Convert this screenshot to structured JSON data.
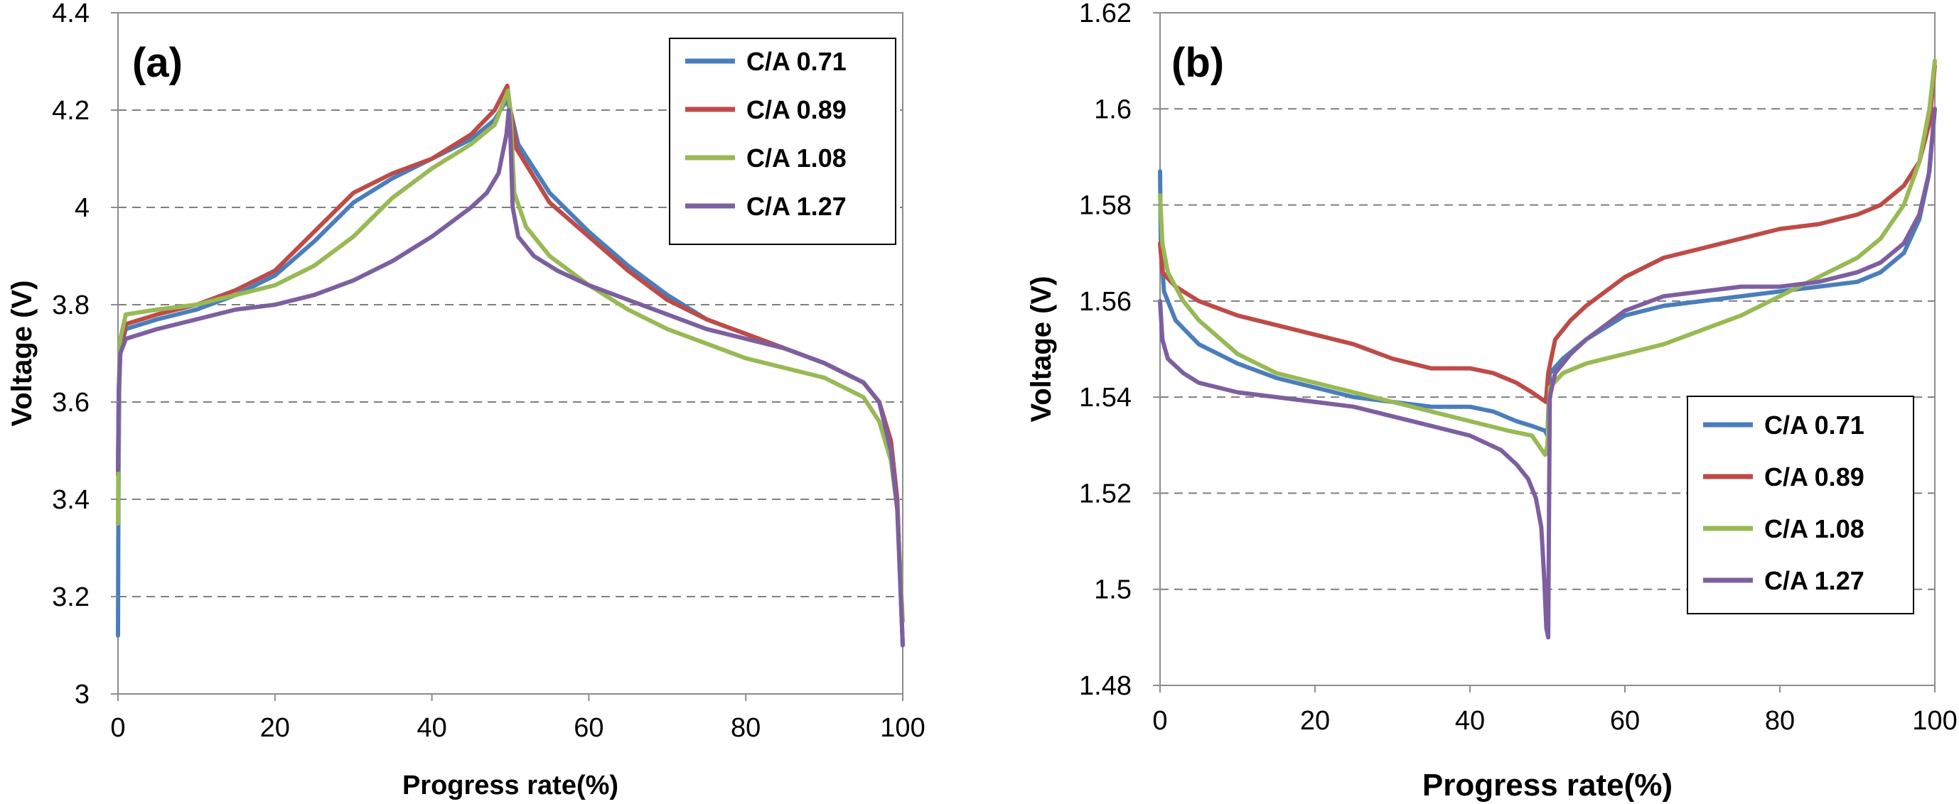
{
  "chart_data": [
    {
      "type": "line",
      "panel_label": "(a)",
      "xlabel": "Progress rate(%)",
      "ylabel": "Voltage  (V)",
      "xlim": [
        0,
        100
      ],
      "ylim": [
        3.0,
        4.4
      ],
      "x_ticks": [
        "0",
        "20",
        "40",
        "60",
        "80",
        "100"
      ],
      "y_ticks": [
        "3",
        "3.2",
        "3.4",
        "3.6",
        "3.8",
        "4",
        "4.2",
        "4.4"
      ],
      "grid": "horizontal-dashed",
      "legend_position": "top-right",
      "series": [
        {
          "name": "C/A 0.71",
          "color": "#4a7ebb",
          "points": [
            [
              0,
              3.12
            ],
            [
              0.05,
              3.4
            ],
            [
              0.15,
              3.62
            ],
            [
              0.3,
              3.71
            ],
            [
              1,
              3.75
            ],
            [
              5,
              3.77
            ],
            [
              10,
              3.79
            ],
            [
              15,
              3.82
            ],
            [
              20,
              3.86
            ],
            [
              25,
              3.93
            ],
            [
              30,
              4.01
            ],
            [
              35,
              4.06
            ],
            [
              40,
              4.1
            ],
            [
              45,
              4.14
            ],
            [
              48,
              4.18
            ],
            [
              49.5,
              4.22
            ],
            [
              50,
              4.2
            ],
            [
              51,
              4.13
            ],
            [
              55,
              4.03
            ],
            [
              60,
              3.95
            ],
            [
              65,
              3.88
            ],
            [
              70,
              3.82
            ],
            [
              75,
              3.77
            ],
            [
              80,
              3.74
            ],
            [
              85,
              3.71
            ],
            [
              90,
              3.68
            ],
            [
              95,
              3.64
            ],
            [
              97,
              3.6
            ],
            [
              98.5,
              3.52
            ],
            [
              99.3,
              3.4
            ],
            [
              100,
              3.1
            ]
          ]
        },
        {
          "name": "C/A 0.89",
          "color": "#be4b48",
          "points": [
            [
              0,
              3.45
            ],
            [
              0.1,
              3.62
            ],
            [
              0.3,
              3.71
            ],
            [
              1,
              3.76
            ],
            [
              5,
              3.78
            ],
            [
              10,
              3.8
            ],
            [
              15,
              3.83
            ],
            [
              20,
              3.87
            ],
            [
              25,
              3.95
            ],
            [
              30,
              4.03
            ],
            [
              35,
              4.07
            ],
            [
              40,
              4.1
            ],
            [
              45,
              4.15
            ],
            [
              48,
              4.2
            ],
            [
              49.6,
              4.25
            ],
            [
              50,
              4.2
            ],
            [
              50.8,
              4.12
            ],
            [
              55,
              4.01
            ],
            [
              60,
              3.94
            ],
            [
              65,
              3.87
            ],
            [
              70,
              3.81
            ],
            [
              75,
              3.77
            ],
            [
              80,
              3.74
            ],
            [
              85,
              3.71
            ],
            [
              90,
              3.68
            ],
            [
              95,
              3.64
            ],
            [
              97,
              3.6
            ],
            [
              98.5,
              3.52
            ],
            [
              99.3,
              3.4
            ],
            [
              100,
              3.1
            ]
          ]
        },
        {
          "name": "C/A 1.08",
          "color": "#98b954",
          "points": [
            [
              0,
              3.35
            ],
            [
              0.1,
              3.6
            ],
            [
              0.3,
              3.73
            ],
            [
              1,
              3.78
            ],
            [
              5,
              3.79
            ],
            [
              10,
              3.8
            ],
            [
              15,
              3.82
            ],
            [
              20,
              3.84
            ],
            [
              25,
              3.88
            ],
            [
              30,
              3.94
            ],
            [
              35,
              4.02
            ],
            [
              40,
              4.08
            ],
            [
              45,
              4.13
            ],
            [
              48,
              4.17
            ],
            [
              49.7,
              4.24
            ],
            [
              50,
              4.2
            ],
            [
              50.5,
              4.03
            ],
            [
              52,
              3.96
            ],
            [
              55,
              3.9
            ],
            [
              60,
              3.84
            ],
            [
              65,
              3.79
            ],
            [
              70,
              3.75
            ],
            [
              75,
              3.72
            ],
            [
              80,
              3.69
            ],
            [
              85,
              3.67
            ],
            [
              90,
              3.65
            ],
            [
              95,
              3.61
            ],
            [
              97,
              3.56
            ],
            [
              98.5,
              3.48
            ],
            [
              99.3,
              3.38
            ],
            [
              100,
              3.15
            ]
          ]
        },
        {
          "name": "C/A 1.27",
          "color": "#7d5fa0",
          "points": [
            [
              0,
              3.46
            ],
            [
              0.1,
              3.63
            ],
            [
              0.3,
              3.7
            ],
            [
              1,
              3.73
            ],
            [
              5,
              3.75
            ],
            [
              10,
              3.77
            ],
            [
              15,
              3.79
            ],
            [
              20,
              3.8
            ],
            [
              25,
              3.82
            ],
            [
              30,
              3.85
            ],
            [
              35,
              3.89
            ],
            [
              40,
              3.94
            ],
            [
              45,
              4.0
            ],
            [
              47,
              4.03
            ],
            [
              48.5,
              4.07
            ],
            [
              49.5,
              4.15
            ],
            [
              49.8,
              4.2
            ],
            [
              50,
              4.15
            ],
            [
              50.3,
              4.0
            ],
            [
              51,
              3.94
            ],
            [
              53,
              3.9
            ],
            [
              56,
              3.87
            ],
            [
              60,
              3.84
            ],
            [
              65,
              3.81
            ],
            [
              70,
              3.78
            ],
            [
              75,
              3.75
            ],
            [
              80,
              3.73
            ],
            [
              85,
              3.71
            ],
            [
              90,
              3.68
            ],
            [
              95,
              3.64
            ],
            [
              97,
              3.6
            ],
            [
              98.5,
              3.5
            ],
            [
              99.3,
              3.38
            ],
            [
              100,
              3.1
            ]
          ]
        }
      ]
    },
    {
      "type": "line",
      "panel_label": "(b)",
      "xlabel": "Progress rate(%)",
      "ylabel": "Voltage  (V)",
      "xlim": [
        0,
        100
      ],
      "ylim": [
        1.48,
        1.62
      ],
      "x_ticks": [
        "0",
        "20",
        "40",
        "60",
        "80",
        "100"
      ],
      "y_ticks": [
        "1.48",
        "1.5",
        "1.52",
        "1.54",
        "1.56",
        "1.58",
        "1.6",
        "1.62"
      ],
      "grid": "horizontal-dashed",
      "legend_position": "bottom-right",
      "series": [
        {
          "name": "C/A 0.71",
          "color": "#4a7ebb",
          "points": [
            [
              0,
              1.587
            ],
            [
              0.1,
              1.572
            ],
            [
              0.5,
              1.562
            ],
            [
              2,
              1.556
            ],
            [
              5,
              1.551
            ],
            [
              10,
              1.547
            ],
            [
              15,
              1.544
            ],
            [
              20,
              1.542
            ],
            [
              25,
              1.54
            ],
            [
              30,
              1.539
            ],
            [
              35,
              1.538
            ],
            [
              40,
              1.538
            ],
            [
              43,
              1.537
            ],
            [
              46,
              1.535
            ],
            [
              48,
              1.534
            ],
            [
              49.7,
              1.533
            ],
            [
              50,
              1.532
            ],
            [
              50.3,
              1.545
            ],
            [
              52,
              1.548
            ],
            [
              55,
              1.552
            ],
            [
              60,
              1.557
            ],
            [
              65,
              1.559
            ],
            [
              70,
              1.56
            ],
            [
              75,
              1.561
            ],
            [
              80,
              1.562
            ],
            [
              85,
              1.563
            ],
            [
              90,
              1.564
            ],
            [
              93,
              1.566
            ],
            [
              96,
              1.57
            ],
            [
              98,
              1.577
            ],
            [
              99.2,
              1.586
            ],
            [
              100,
              1.6
            ]
          ]
        },
        {
          "name": "C/A 0.89",
          "color": "#be4b48",
          "points": [
            [
              0,
              1.572
            ],
            [
              0.3,
              1.566
            ],
            [
              2,
              1.563
            ],
            [
              5,
              1.56
            ],
            [
              10,
              1.557
            ],
            [
              15,
              1.555
            ],
            [
              20,
              1.553
            ],
            [
              25,
              1.551
            ],
            [
              30,
              1.548
            ],
            [
              35,
              1.546
            ],
            [
              40,
              1.546
            ],
            [
              43,
              1.545
            ],
            [
              46,
              1.543
            ],
            [
              48,
              1.541
            ],
            [
              49.8,
              1.539
            ],
            [
              50.1,
              1.545
            ],
            [
              51,
              1.552
            ],
            [
              53,
              1.556
            ],
            [
              55,
              1.559
            ],
            [
              60,
              1.565
            ],
            [
              65,
              1.569
            ],
            [
              70,
              1.571
            ],
            [
              75,
              1.573
            ],
            [
              80,
              1.575
            ],
            [
              85,
              1.576
            ],
            [
              90,
              1.578
            ],
            [
              93,
              1.58
            ],
            [
              96,
              1.584
            ],
            [
              98,
              1.589
            ],
            [
              99.3,
              1.597
            ],
            [
              100,
              1.609
            ]
          ]
        },
        {
          "name": "C/A 1.08",
          "color": "#98b954",
          "points": [
            [
              0,
              1.582
            ],
            [
              0.3,
              1.572
            ],
            [
              1,
              1.566
            ],
            [
              3,
              1.56
            ],
            [
              5,
              1.556
            ],
            [
              10,
              1.549
            ],
            [
              15,
              1.545
            ],
            [
              20,
              1.543
            ],
            [
              25,
              1.541
            ],
            [
              30,
              1.539
            ],
            [
              35,
              1.537
            ],
            [
              40,
              1.535
            ],
            [
              45,
              1.533
            ],
            [
              48,
              1.532
            ],
            [
              49.7,
              1.528
            ],
            [
              50,
              1.53
            ],
            [
              50.3,
              1.542
            ],
            [
              52,
              1.545
            ],
            [
              55,
              1.547
            ],
            [
              60,
              1.549
            ],
            [
              65,
              1.551
            ],
            [
              70,
              1.554
            ],
            [
              75,
              1.557
            ],
            [
              80,
              1.561
            ],
            [
              85,
              1.565
            ],
            [
              90,
              1.569
            ],
            [
              93,
              1.573
            ],
            [
              96,
              1.58
            ],
            [
              98,
              1.589
            ],
            [
              99.3,
              1.6
            ],
            [
              100,
              1.61
            ]
          ]
        },
        {
          "name": "C/A 1.27",
          "color": "#7d5fa0",
          "points": [
            [
              0,
              1.56
            ],
            [
              0.3,
              1.552
            ],
            [
              1,
              1.548
            ],
            [
              3,
              1.545
            ],
            [
              5,
              1.543
            ],
            [
              10,
              1.541
            ],
            [
              15,
              1.54
            ],
            [
              20,
              1.539
            ],
            [
              25,
              1.538
            ],
            [
              30,
              1.536
            ],
            [
              35,
              1.534
            ],
            [
              40,
              1.532
            ],
            [
              44,
              1.529
            ],
            [
              46,
              1.526
            ],
            [
              47.5,
              1.523
            ],
            [
              48.5,
              1.519
            ],
            [
              49.2,
              1.513
            ],
            [
              49.6,
              1.502
            ],
            [
              49.85,
              1.492
            ],
            [
              50.1,
              1.49
            ],
            [
              50.3,
              1.54
            ],
            [
              51,
              1.545
            ],
            [
              53,
              1.549
            ],
            [
              55,
              1.552
            ],
            [
              60,
              1.558
            ],
            [
              65,
              1.561
            ],
            [
              70,
              1.562
            ],
            [
              75,
              1.563
            ],
            [
              80,
              1.563
            ],
            [
              85,
              1.564
            ],
            [
              90,
              1.566
            ],
            [
              93,
              1.568
            ],
            [
              96,
              1.572
            ],
            [
              98,
              1.578
            ],
            [
              99.3,
              1.587
            ],
            [
              100,
              1.6
            ]
          ]
        }
      ]
    }
  ]
}
